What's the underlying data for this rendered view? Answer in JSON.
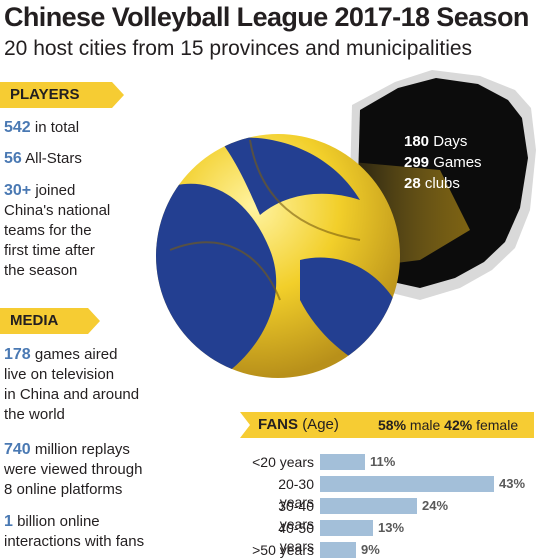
{
  "header": {
    "title": "Chinese Volleyball League 2017-18 Season",
    "subtitle": "20 host cities from 15 provinces and municipalities"
  },
  "players": {
    "heading": "PLAYERS",
    "total_num": "542",
    "total_text": "in total",
    "allstars_num": "56",
    "allstars_text": "All-Stars",
    "national_num": "30+",
    "national_line1": "joined",
    "national_line2": "China's national",
    "national_line3": "teams for the",
    "national_line4": "first time after",
    "national_line5": "the season"
  },
  "media": {
    "heading": "MEDIA",
    "games_num": "178",
    "games_line1": "games aired",
    "games_line2": "live on television",
    "games_line3": "in China and around",
    "games_line4": "the world",
    "replays_num": "740",
    "replays_line1": "million replays",
    "replays_line2": "were viewed through",
    "replays_line3": "8 online platforms",
    "interactions_num": "1",
    "interactions_line1": "billion online",
    "interactions_line2": "interactions with fans"
  },
  "season": {
    "days_num": "180",
    "days_label": "Days",
    "games_num": "299",
    "games_label": "Games",
    "clubs_num": "28",
    "clubs_label": "clubs"
  },
  "fans": {
    "heading": "FANS",
    "age_label": "(Age)",
    "male_pct": "58%",
    "male_label": "male",
    "female_pct": "42%",
    "female_label": "female"
  },
  "colors": {
    "accent_yellow": "#f6cc33",
    "number_blue": "#4a79b3",
    "bar_blue": "#a3bfd9",
    "ball_blue": "#233f91"
  },
  "chart_data": {
    "type": "bar",
    "orientation": "horizontal",
    "categories": [
      "<20 years",
      "20-30 years",
      "30-40 years",
      "40-50 years",
      ">50 years"
    ],
    "values": [
      11,
      43,
      24,
      13,
      9
    ],
    "value_labels": [
      "11%",
      "43%",
      "24%",
      "13%",
      "9%"
    ],
    "unit": "%",
    "xlim": [
      0,
      43
    ],
    "grid": false
  }
}
